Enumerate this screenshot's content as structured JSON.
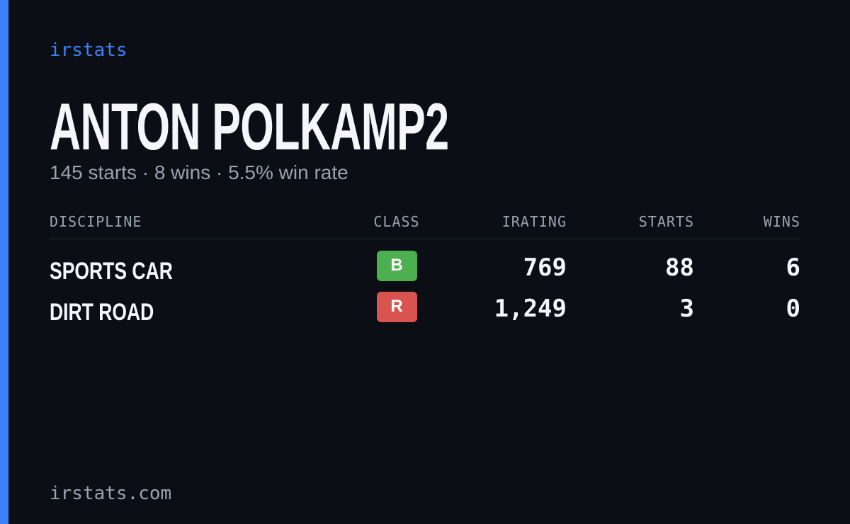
{
  "brand": "irstats",
  "player": {
    "name": "ANTON POLKAMP2",
    "summary": "145 starts · 8 wins · 5.5% win rate"
  },
  "table": {
    "columns": [
      "DISCIPLINE",
      "CLASS",
      "IRATING",
      "STARTS",
      "WINS"
    ],
    "rows": [
      [
        "SPORTS CAR",
        "B",
        "769",
        "88",
        "6"
      ],
      [
        "DIRT ROAD",
        "R",
        "1,249",
        "3",
        "0"
      ]
    ]
  },
  "footer": "irstats.com"
}
